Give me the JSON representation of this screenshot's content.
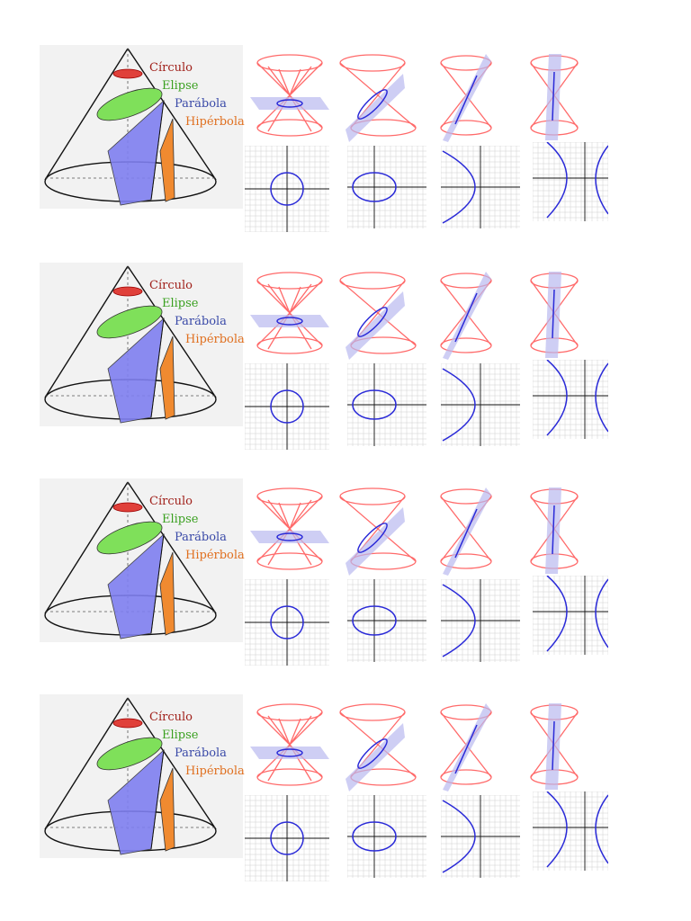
{
  "labels": {
    "circle": "Círculo",
    "ellipse": "Elipse",
    "parabola": "Parábola",
    "hyperbola": "Hipérbola"
  },
  "colors": {
    "circle": "#e0403a",
    "ellipse": "#7fe05a",
    "parabola": "#7f7ff0",
    "hyperbola": "#f08a30",
    "cone_line": "#ff6a6a",
    "curve": "#2a2ad8",
    "plane": "#b9b9f0"
  },
  "panels": [
    {
      "id": "panel-1"
    },
    {
      "id": "panel-2"
    },
    {
      "id": "panel-3"
    },
    {
      "id": "panel-4"
    }
  ]
}
